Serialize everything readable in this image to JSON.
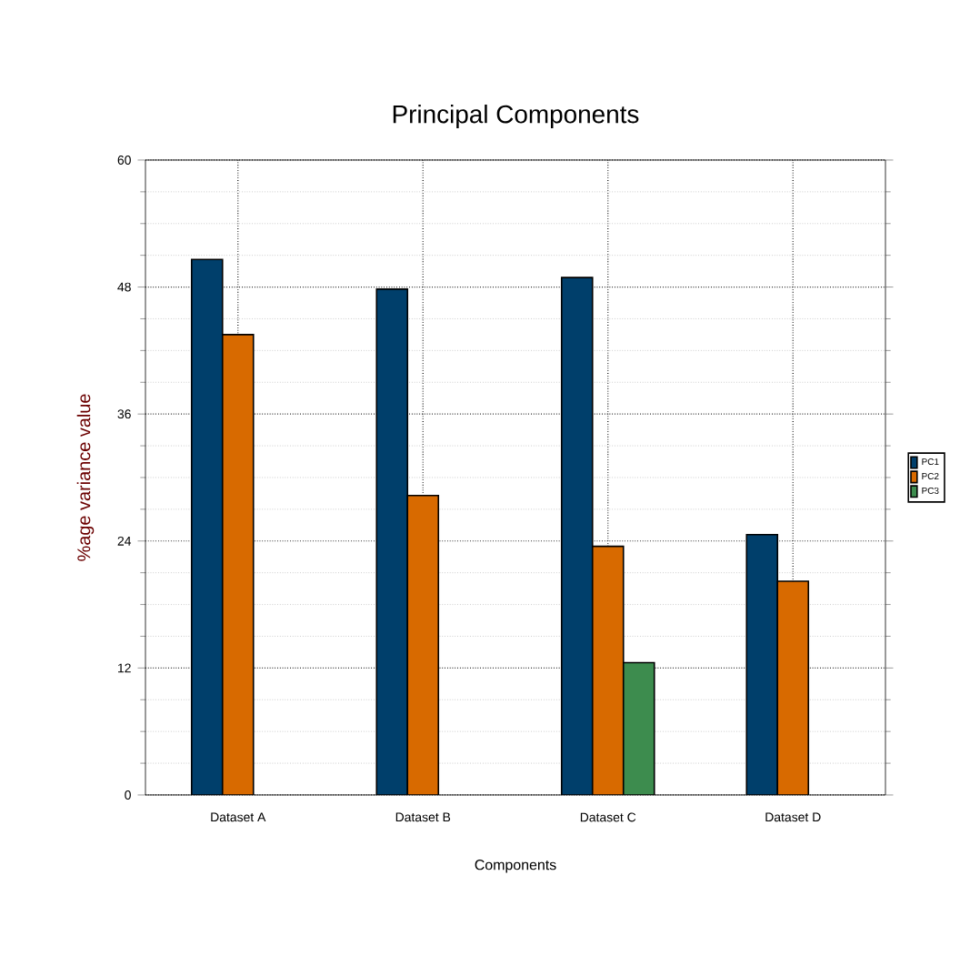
{
  "chart_data": {
    "type": "bar",
    "title": "Principal Components",
    "xlabel": "Components",
    "ylabel": "%age variance value",
    "categories": [
      "Dataset A",
      "Dataset B",
      "Dataset C",
      "Dataset D"
    ],
    "series": [
      {
        "name": "PC1",
        "color": "#003f6b",
        "values": [
          50.6,
          47.8,
          48.9,
          24.6
        ]
      },
      {
        "name": "PC2",
        "color": "#d86a00",
        "values": [
          43.5,
          28.3,
          23.5,
          20.2
        ]
      },
      {
        "name": "PC3",
        "color": "#3d8c4e",
        "values": [
          null,
          null,
          12.5,
          null
        ]
      }
    ],
    "ylim": [
      0,
      60
    ],
    "yticks": [
      0,
      12,
      24,
      36,
      48,
      60
    ],
    "grid": true,
    "legend": "right"
  }
}
